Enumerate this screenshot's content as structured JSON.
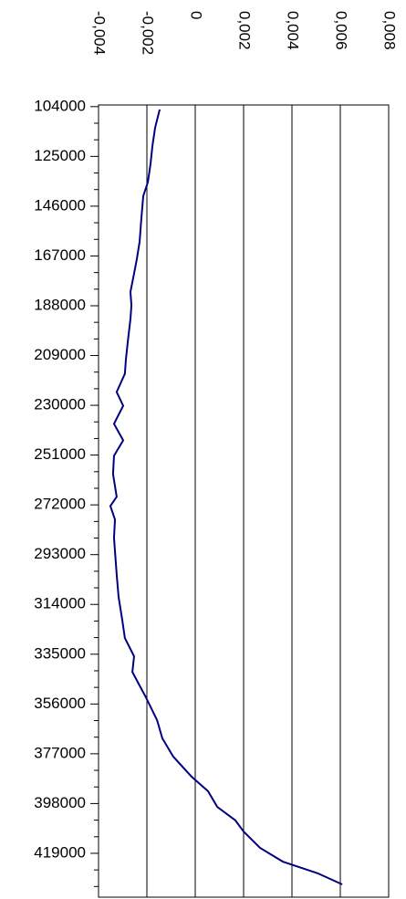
{
  "chart_data": {
    "type": "line",
    "color": "#000080",
    "grid": true,
    "x": [
      105200,
      112900,
      120500,
      128200,
      135900,
      141700,
      151300,
      160900,
      168600,
      174400,
      182100,
      187800,
      193600,
      203200,
      210900,
      216700,
      224400,
      230200,
      237800,
      244800,
      251300,
      259000,
      268600,
      272500,
      278200,
      285900,
      301300,
      310900,
      320500,
      328200,
      335900,
      342500,
      347500,
      353200,
      362800,
      370500,
      378200,
      386700,
      392800,
      399400,
      405100,
      409800,
      416700,
      422500,
      427400,
      432100
    ],
    "values": [
      -0.00147,
      -0.00166,
      -0.00177,
      -0.00185,
      -0.00196,
      -0.00215,
      -0.00223,
      -0.0023,
      -0.00242,
      -0.00253,
      -0.00268,
      -0.00264,
      -0.00268,
      -0.00279,
      -0.00287,
      -0.00291,
      -0.00325,
      -0.00298,
      -0.00336,
      -0.00298,
      -0.00336,
      -0.0034,
      -0.00325,
      -0.00351,
      -0.00332,
      -0.00336,
      -0.00325,
      -0.00317,
      -0.00302,
      -0.00291,
      -0.00253,
      -0.0026,
      -0.00234,
      -0.00204,
      -0.00158,
      -0.00136,
      -0.00091,
      -0.00015,
      0.00053,
      0.00091,
      0.00166,
      0.002,
      0.00268,
      0.00362,
      0.00506,
      0.00608
    ],
    "xlim": [
      103300,
      437500
    ],
    "xticks": [
      104000,
      125000,
      146000,
      167000,
      188000,
      209000,
      230000,
      251000,
      272000,
      293000,
      314000,
      335000,
      356000,
      377000,
      398000,
      419000
    ],
    "xminorticks": [
      111000,
      118000,
      132000,
      139000,
      153000,
      160000,
      174000,
      181000,
      195000,
      202000,
      216000,
      223000,
      237000,
      244000,
      258000,
      265000,
      279000,
      286000,
      300000,
      307000,
      321000,
      328000,
      342000,
      349000,
      363000,
      370000,
      384000,
      391000,
      405000,
      412000,
      426000,
      433000
    ],
    "ylim": [
      -0.004,
      0.008
    ],
    "yticks": [
      {
        "value": -0.004,
        "label": "-0,004"
      },
      {
        "value": -0.002,
        "label": "-0,002"
      },
      0,
      {
        "value": 0.002,
        "label": "0,002"
      },
      {
        "value": 0.004,
        "label": "0,004"
      },
      {
        "value": 0.006,
        "label": "0,006"
      },
      {
        "value": 0.008,
        "label": "0,008"
      }
    ]
  }
}
